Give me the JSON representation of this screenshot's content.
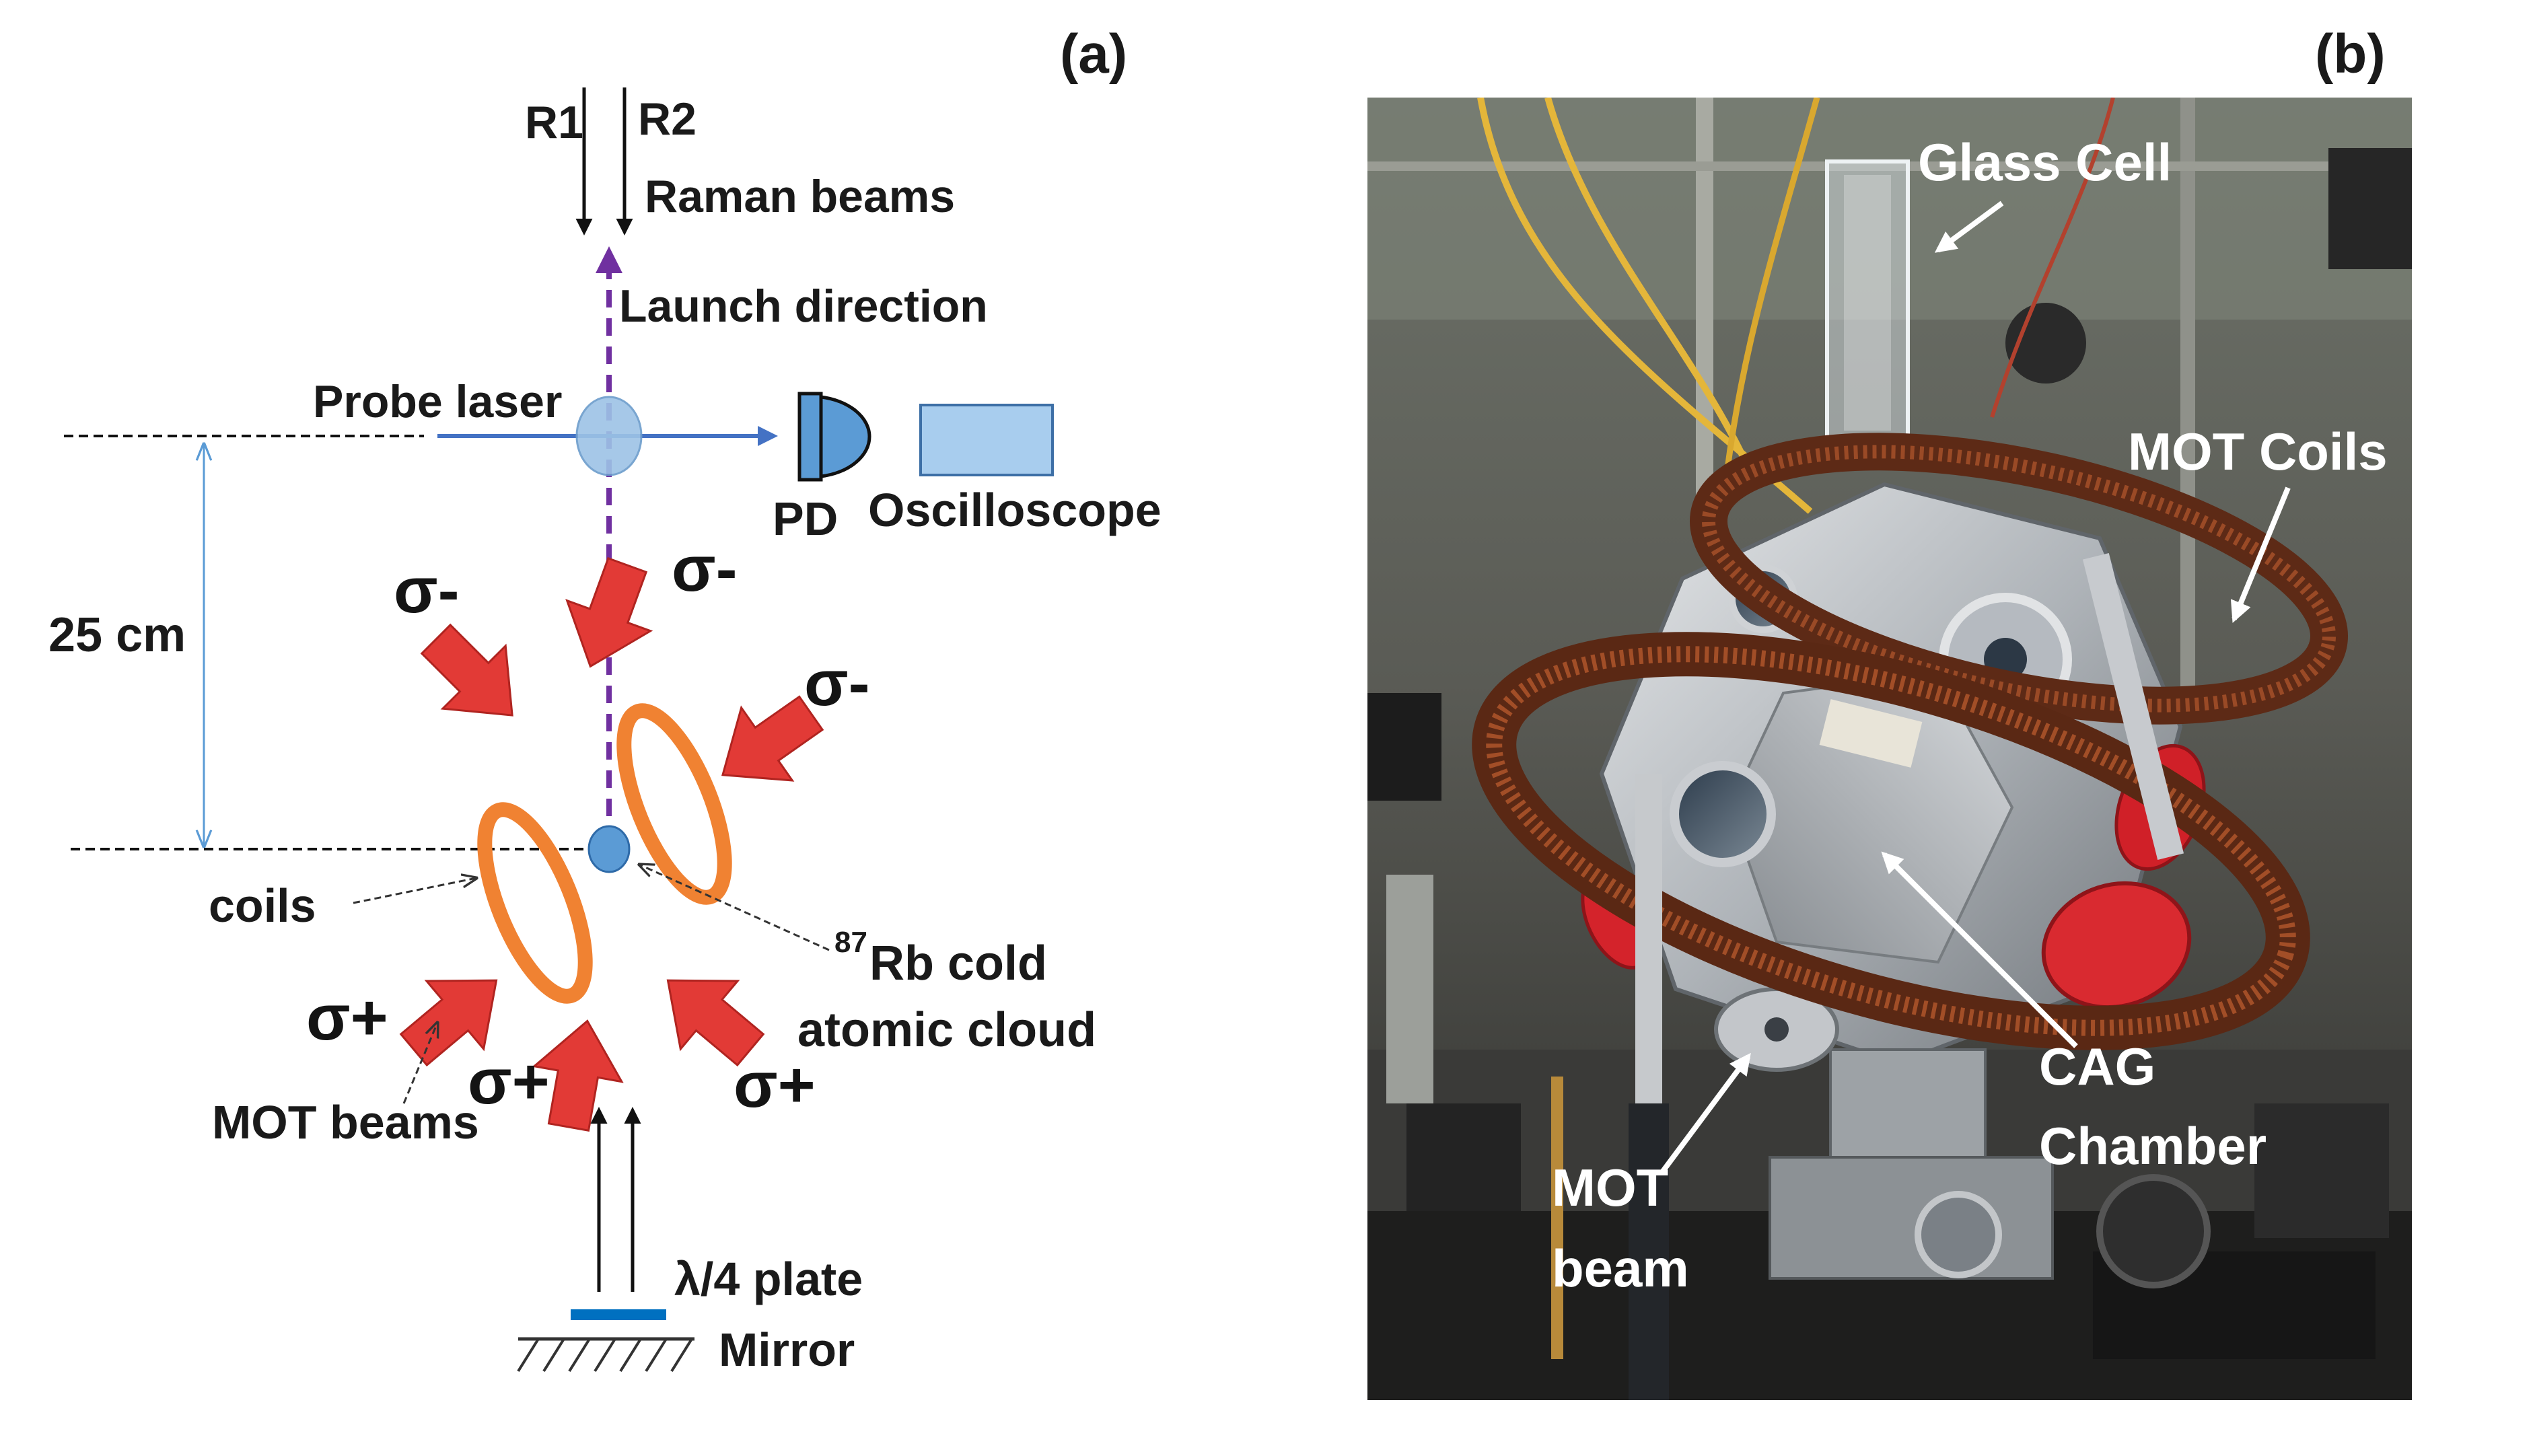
{
  "panels": {
    "a": {
      "tag": "(a)"
    },
    "b": {
      "tag": "(b)"
    }
  },
  "diagram": {
    "beams": {
      "r1": "R1",
      "r2": "R2",
      "raman": "Raman beams"
    },
    "launch": "Launch direction",
    "probe": "Probe laser",
    "pd": "PD",
    "oscilloscope": "Oscilloscope",
    "distance": "25 cm",
    "coils": "coils",
    "cloud_sup": "87",
    "cloud_line1": "Rb cold",
    "cloud_line2": "atomic cloud",
    "mot_beams": "MOT beams",
    "plate": "λ/4 plate",
    "mirror": "Mirror",
    "sigma_minus": "σ-",
    "sigma_plus": "σ+"
  },
  "photo": {
    "glass_cell": "Glass Cell",
    "mot_coils": "MOT Coils",
    "cag1": "CAG",
    "cag2": "Chamber",
    "mot_beam1": "MOT",
    "mot_beam2": "beam"
  },
  "colors": {
    "arrow_red": "#e23a36",
    "coil_orange": "#f08232",
    "probe_blue": "#4472c4",
    "launch_purple": "#7030a0",
    "cloud_blue": "#5b9bd5"
  }
}
